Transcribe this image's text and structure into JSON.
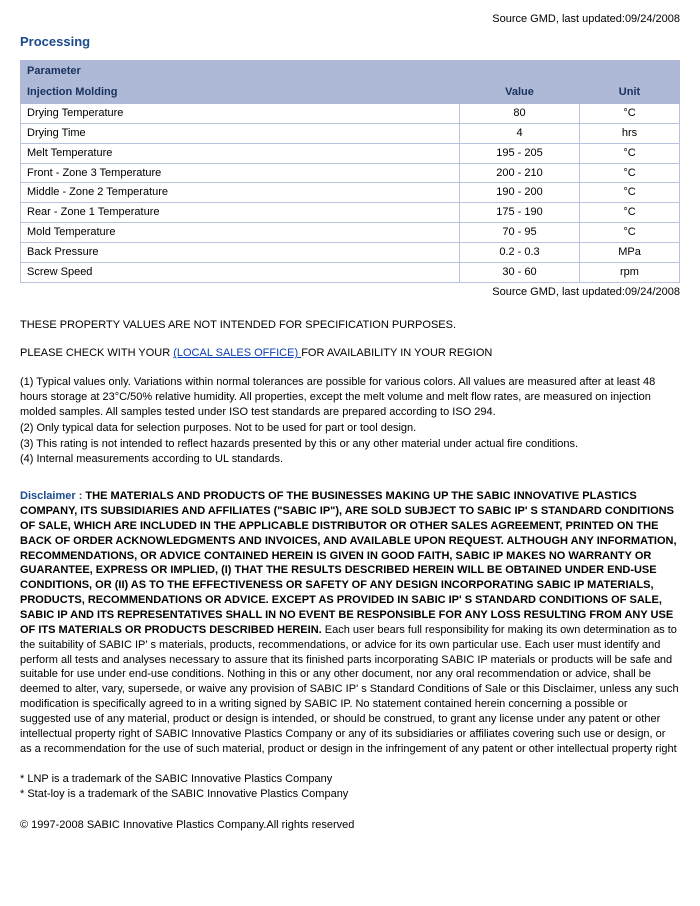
{
  "source_top": "Source GMD, last updated:09/24/2008",
  "section_heading": "Processing",
  "table": {
    "header_param": "Parameter",
    "header_sub": "Injection Molding",
    "header_value": "Value",
    "header_unit": "Unit",
    "rows": [
      {
        "param": "Drying Temperature",
        "value": "80",
        "unit": "°C"
      },
      {
        "param": "Drying Time",
        "value": "4",
        "unit": "hrs"
      },
      {
        "param": "Melt Temperature",
        "value": "195 - 205",
        "unit": "°C"
      },
      {
        "param": "Front - Zone 3 Temperature",
        "value": "200 - 210",
        "unit": "°C"
      },
      {
        "param": "Middle - Zone 2 Temperature",
        "value": "190 - 200",
        "unit": "°C"
      },
      {
        "param": "Rear - Zone 1 Temperature",
        "value": "175 - 190",
        "unit": "°C"
      },
      {
        "param": "Mold Temperature",
        "value": "70 - 95",
        "unit": "°C"
      },
      {
        "param": "Back Pressure",
        "value": "0.2 - 0.3",
        "unit": "MPa"
      },
      {
        "param": "Screw Speed",
        "value": "30 - 60",
        "unit": "rpm"
      }
    ]
  },
  "source_bot": "Source GMD, last updated:09/24/2008",
  "caps_line": "THESE PROPERTY VALUES ARE NOT INTENDED FOR SPECIFICATION PURPOSES.",
  "check_line_pre": "PLEASE CHECK WITH YOUR ",
  "check_line_link": "(LOCAL SALES OFFICE) ",
  "check_line_post": "FOR AVAILABILITY IN YOUR REGION",
  "notes": [
    "(1) Typical values only. Variations within normal tolerances are possible for various colors. All values are measured after at least 48 hours storage at 23°C/50% relative humidity. All properties, except the melt volume and melt flow rates, are measured on injection molded samples. All samples tested under ISO test standards are prepared according to ISO 294.",
    "(2) Only typical data for selection purposes. Not to be used for part or tool design.",
    "(3) This rating is not intended to reflect hazards presented by this or any other material under actual fire conditions.",
    "(4) Internal measurements according to UL standards."
  ],
  "disclaimer_label": "Disclaimer : ",
  "disclaimer_bold": "THE MATERIALS AND PRODUCTS OF THE BUSINESSES MAKING UP THE SABIC INNOVATIVE PLASTICS COMPANY, ITS SUBSIDIARIES AND AFFILIATES (\"SABIC IP\"), ARE SOLD SUBJECT TO SABIC IP' S STANDARD CONDITIONS OF SALE, WHICH ARE INCLUDED IN THE APPLICABLE DISTRIBUTOR OR OTHER SALES AGREEMENT, PRINTED ON THE BACK OF ORDER ACKNOWLEDGMENTS AND INVOICES, AND AVAILABLE UPON REQUEST. ALTHOUGH ANY INFORMATION, RECOMMENDATIONS, OR ADVICE CONTAINED HEREIN IS GIVEN IN GOOD FAITH, SABIC IP MAKES NO WARRANTY OR GUARANTEE, EXPRESS OR IMPLIED, (I) THAT THE RESULTS DESCRIBED HEREIN WILL BE OBTAINED UNDER END-USE CONDITIONS, OR (II) AS TO THE EFFECTIVENESS OR SAFETY OF ANY DESIGN INCORPORATING SABIC IP MATERIALS, PRODUCTS, RECOMMENDATIONS OR ADVICE. EXCEPT AS PROVIDED IN SABIC IP' S STANDARD CONDITIONS OF SALE, SABIC IP AND ITS REPRESENTATIVES SHALL IN NO EVENT BE RESPONSIBLE FOR ANY LOSS RESULTING FROM ANY USE OF ITS MATERIALS OR PRODUCTS DESCRIBED HEREIN.",
  "disclaimer_rest": " Each user bears full responsibility for making its own determination as to the suitability of SABIC IP' s materials, products, recommendations, or advice for its own particular use. Each user must identify and perform all tests and analyses necessary to assure that its finished parts incorporating SABIC IP materials or products will be safe and suitable for use under end-use conditions. Nothing in this or any other document, nor any oral recommendation or advice, shall be deemed to alter, vary, supersede, or waive any provision of SABIC IP' s Standard Conditions of Sale or this Disclaimer, unless any such modification is specifically agreed to in a writing signed by SABIC IP. No statement contained herein concerning a possible or suggested use of any material, product or design is intended, or should be construed, to grant any license under any patent or other intellectual property right of SABIC Innovative Plastics Company or any of its subsidiaries or affiliates covering such use or design, or as a recommendation for the use of such material, product or design in the infringement of any patent or other intellectual property right",
  "trademarks": [
    "* LNP is a trademark of the SABIC Innovative Plastics Company",
    "* Stat-loy is a trademark of the SABIC Innovative Plastics Company"
  ],
  "copyright": "© 1997-2008 SABIC Innovative Plastics Company.All rights reserved"
}
